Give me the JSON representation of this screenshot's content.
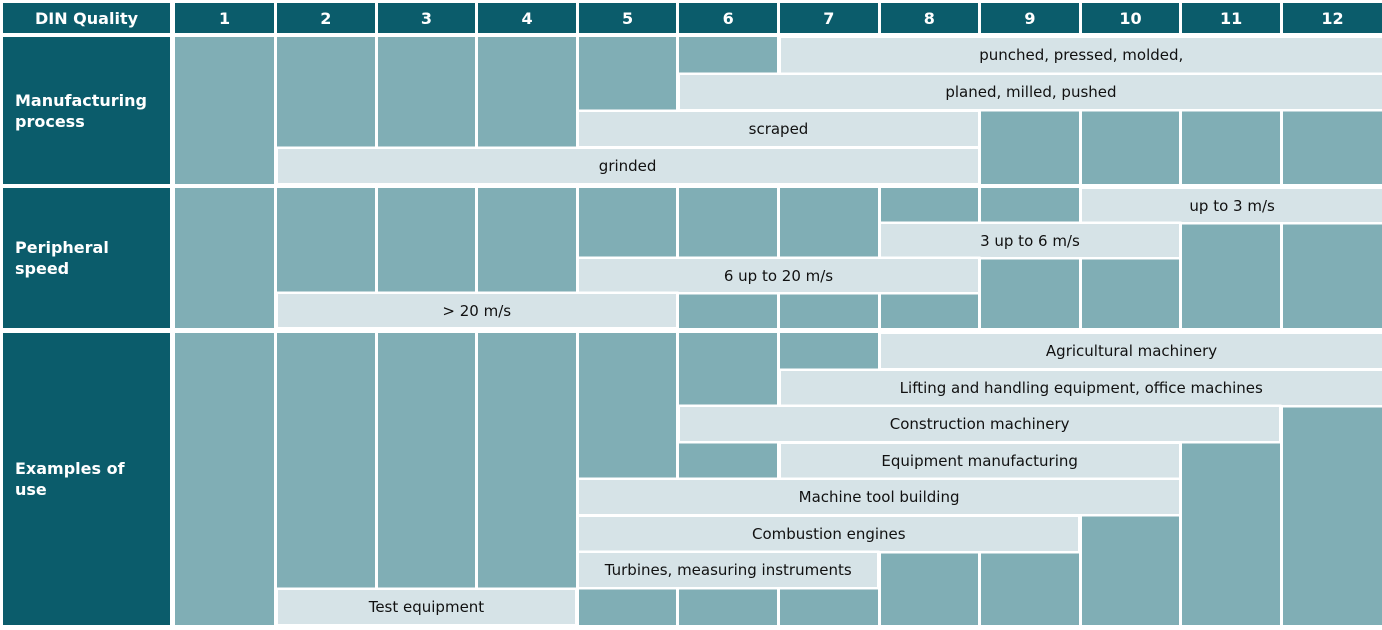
{
  "header": {
    "corner_label": "DIN Quality",
    "columns": [
      "1",
      "2",
      "3",
      "4",
      "5",
      "6",
      "7",
      "8",
      "9",
      "10",
      "11",
      "12"
    ]
  },
  "colors": {
    "header_bg": "#0b5c6b",
    "header_text": "#ffffff",
    "cell_bg": "#80aeb5",
    "bar_bg": "#d6e3e7",
    "bar_text": "#111111",
    "grid_line": "#ffffff"
  },
  "chart_data": {
    "type": "bar",
    "subtype": "horizontal-range-gantt",
    "title": "DIN Quality",
    "xlabel": "DIN Quality",
    "x_categories": [
      "1",
      "2",
      "3",
      "4",
      "5",
      "6",
      "7",
      "8",
      "9",
      "10",
      "11",
      "12"
    ],
    "x_range": [
      1,
      12
    ],
    "grid": true,
    "legend": false,
    "groups": [
      {
        "name": "Manufacturing process",
        "display_label": "Manufacturing\nprocess",
        "bars": [
          {
            "label": "punched, pressed, molded,",
            "from": 7,
            "to": 12
          },
          {
            "label": "planed, milled, pushed",
            "from": 6,
            "to": 12
          },
          {
            "label": "scraped",
            "from": 5,
            "to": 8
          },
          {
            "label": "grinded",
            "from": 2,
            "to": 8
          }
        ]
      },
      {
        "name": "Peripheral speed",
        "display_label": "Peripheral\nspeed",
        "bars": [
          {
            "label": "up to 3 m/s",
            "from": 10,
            "to": 12
          },
          {
            "label": "3 up to 6 m/s",
            "from": 8,
            "to": 10
          },
          {
            "label": "6 up to 20 m/s",
            "from": 5,
            "to": 8
          },
          {
            "label": "> 20 m/s",
            "from": 2,
            "to": 5
          }
        ]
      },
      {
        "name": "Examples of use",
        "display_label": "Examples of\nuse",
        "bars": [
          {
            "label": "Agricultural machinery",
            "from": 8,
            "to": 12
          },
          {
            "label": "Lifting and handling equipment, office machines",
            "from": 7,
            "to": 12
          },
          {
            "label": "Construction machinery",
            "from": 6,
            "to": 11
          },
          {
            "label": "Equipment manufacturing",
            "from": 7,
            "to": 10
          },
          {
            "label": "Machine tool building",
            "from": 5,
            "to": 10
          },
          {
            "label": "Combustion engines",
            "from": 5,
            "to": 9
          },
          {
            "label": "Turbines, measuring instruments",
            "from": 5,
            "to": 7
          },
          {
            "label": "Test equipment",
            "from": 2,
            "to": 4
          }
        ]
      }
    ]
  }
}
